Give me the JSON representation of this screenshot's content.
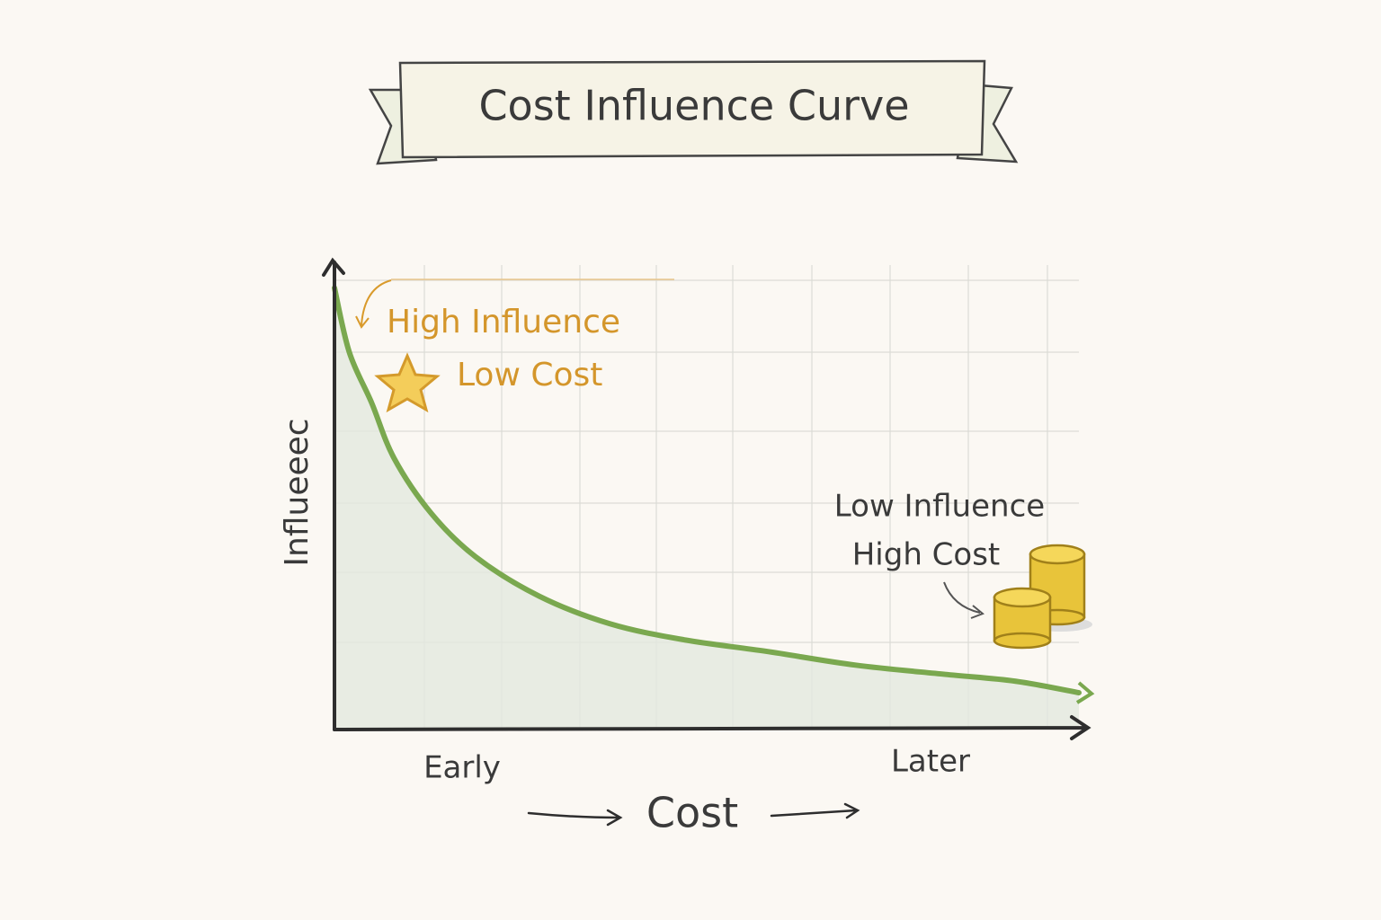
{
  "chart_data": {
    "type": "area",
    "title": "Cost Influence Curve",
    "x_label": "Cost",
    "y_label": "Influeeec",
    "x_labels": [
      "Early",
      "Later"
    ],
    "annotations": [
      "High Influence",
      "Low Cost",
      "Low Influence",
      "High Cost"
    ],
    "x": [
      0,
      0.2,
      0.5,
      0.8,
      1.3,
      1.9,
      2.75,
      3.7,
      4.7,
      5.8,
      7.0,
      8.2,
      9.15,
      10
    ],
    "values": [
      9.6,
      8.2,
      7.1,
      5.9,
      4.7,
      3.75,
      2.9,
      2.3,
      1.95,
      1.7,
      1.4,
      1.2,
      1.05,
      0.8
    ],
    "color": "#7aa84f",
    "fill": "#e4e8df",
    "xlim": [
      0,
      10
    ],
    "ylim": [
      0,
      10
    ]
  }
}
